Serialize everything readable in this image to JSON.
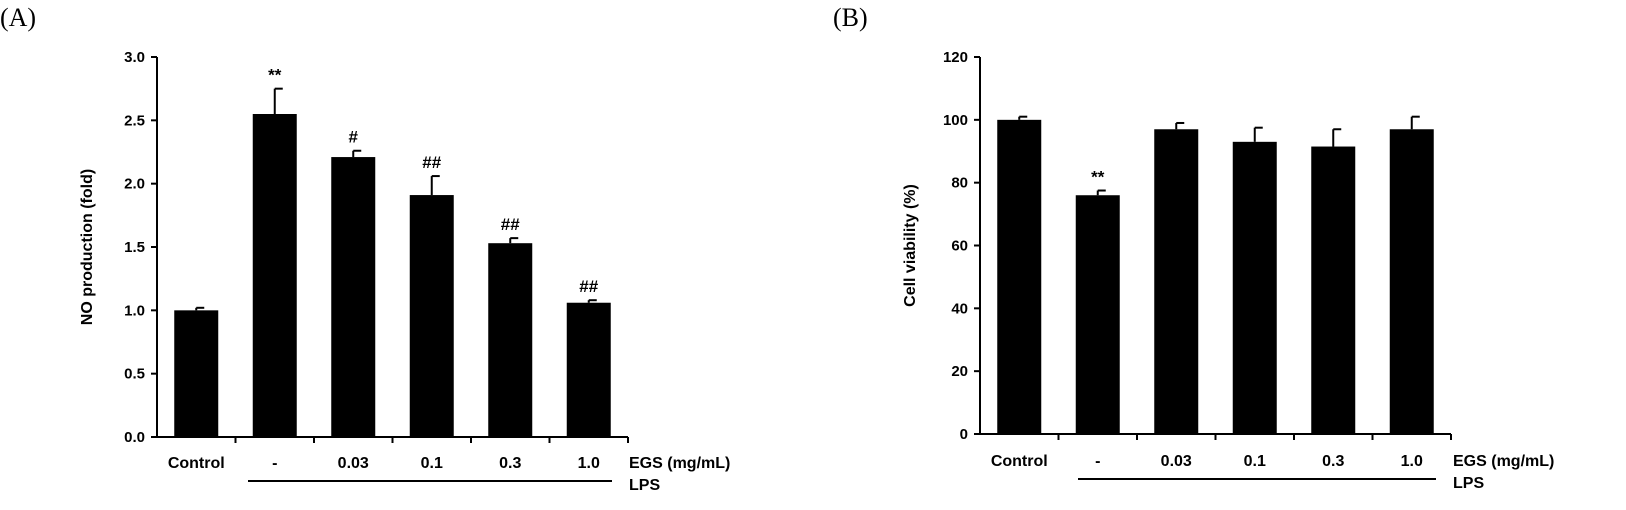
{
  "chart_data": [
    {
      "panel_label": "(A)",
      "type": "bar",
      "ylabel": "NO production (fold)",
      "ylim": [
        0,
        3.0
      ],
      "yticks": [
        "0.0",
        "0.5",
        "1.0",
        "1.5",
        "2.0",
        "2.5",
        "3.0"
      ],
      "categories": [
        "Control",
        "-",
        "0.03",
        "0.1",
        "0.3",
        "1.0"
      ],
      "values": [
        1.0,
        2.55,
        2.21,
        1.91,
        1.53,
        1.06
      ],
      "errors": [
        0.02,
        0.2,
        0.05,
        0.15,
        0.04,
        0.02
      ],
      "annotations": [
        "",
        "**",
        "#",
        "##",
        "##",
        "##"
      ],
      "xlabel": "EGS (mg/mL)",
      "group_label": "LPS",
      "colors": {
        "bar": "#000000",
        "axis": "#000000"
      }
    },
    {
      "panel_label": "(B)",
      "type": "bar",
      "ylabel": "Cell viability (%)",
      "ylim": [
        0,
        120
      ],
      "yticks": [
        "0",
        "20",
        "40",
        "60",
        "80",
        "100",
        "120"
      ],
      "categories": [
        "Control",
        "-",
        "0.03",
        "0.1",
        "0.3",
        "1.0"
      ],
      "values": [
        100,
        76,
        97,
        93,
        91.5,
        97
      ],
      "errors": [
        1,
        1.5,
        2,
        4.5,
        5.5,
        4
      ],
      "annotations": [
        "",
        "**",
        "",
        "",
        "",
        ""
      ],
      "xlabel": "EGS (mg/mL)",
      "group_label": "LPS",
      "colors": {
        "bar": "#000000",
        "axis": "#000000"
      }
    }
  ]
}
